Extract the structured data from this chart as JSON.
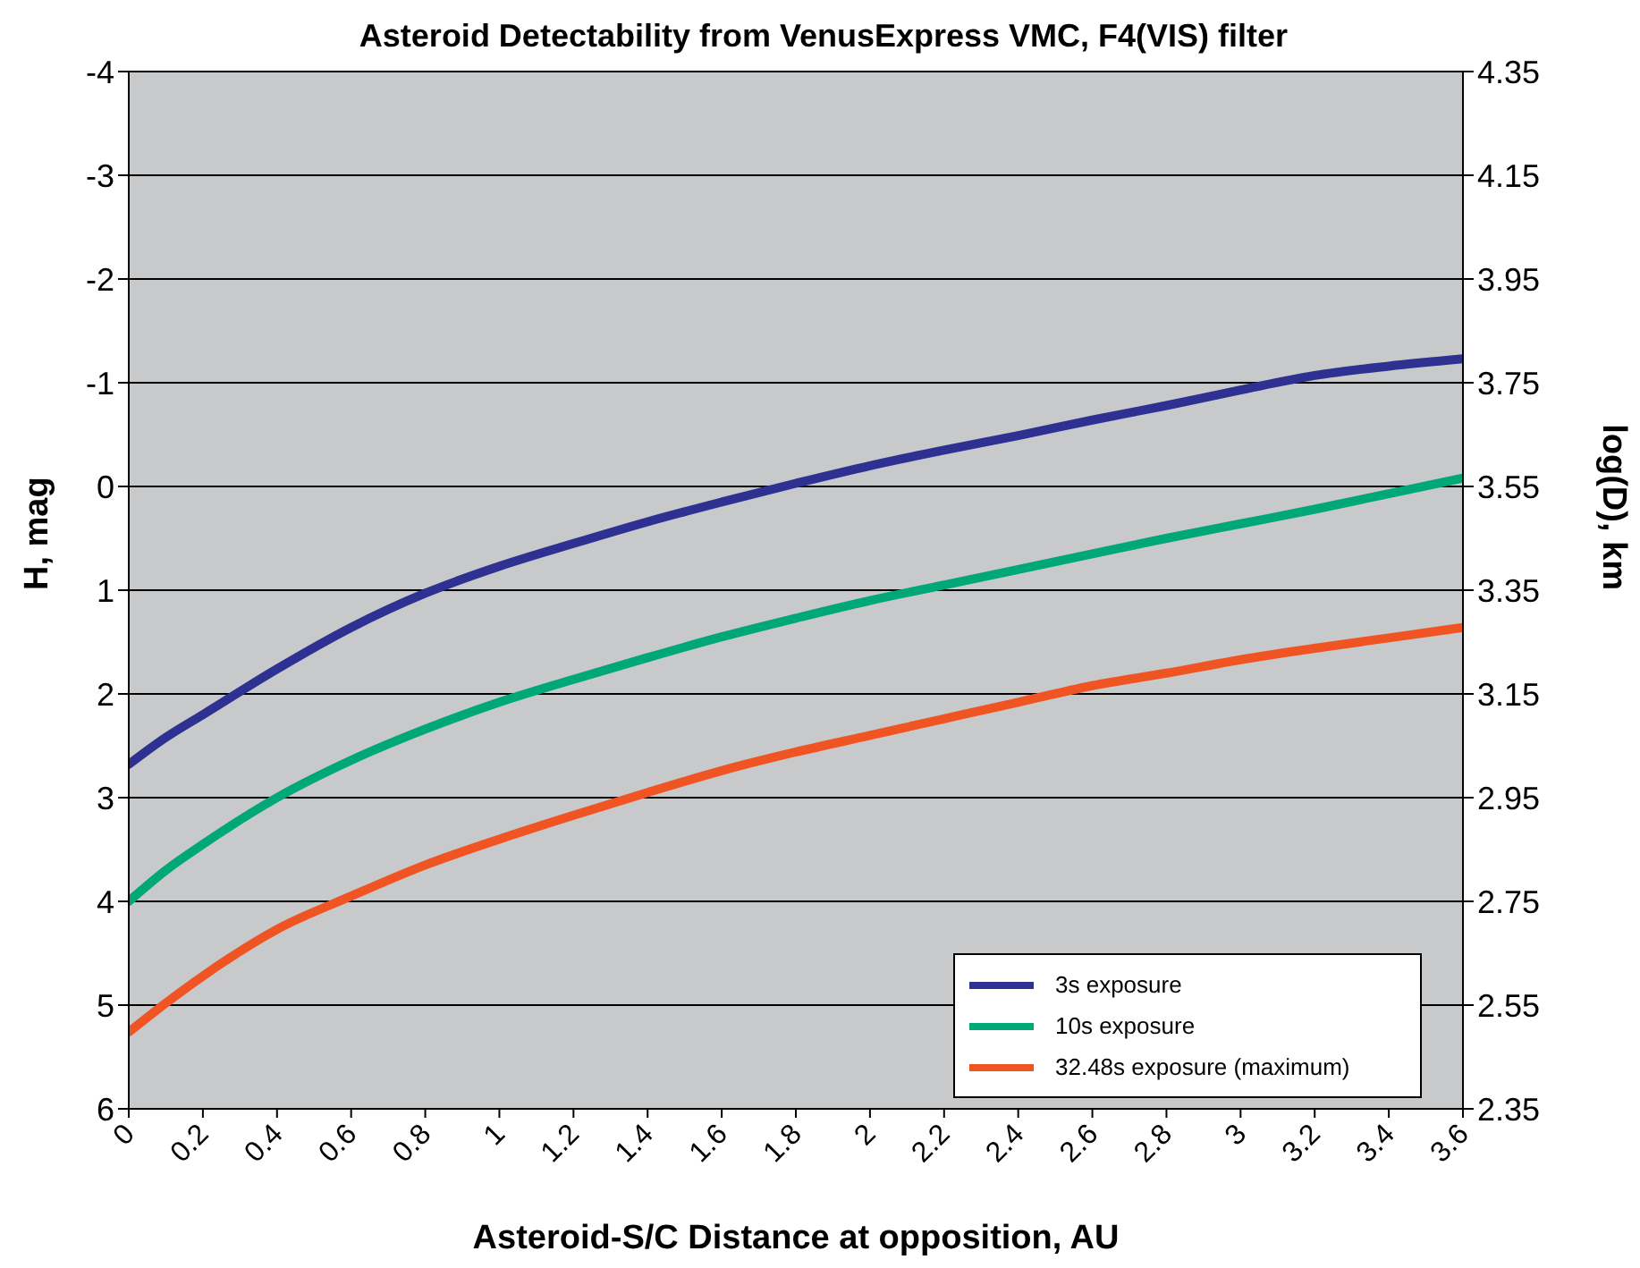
{
  "chart_data": {
    "type": "line",
    "title": "Asteroid Detectability from VenusExpress VMC, F4(VIS) filter",
    "xlabel": "Asteroid-S/C Distance at opposition, AU",
    "ylabel": "H, mag",
    "y2label": "log(D), km",
    "x": [
      0,
      0.1,
      0.2,
      0.4,
      0.6,
      0.8,
      1.0,
      1.2,
      1.4,
      1.6,
      1.8,
      2.0,
      2.2,
      2.4,
      2.6,
      2.8,
      3.0,
      3.2,
      3.4,
      3.6
    ],
    "series": [
      {
        "name": "3s exposure",
        "color": "#2e3192",
        "values": [
          2.68,
          2.42,
          2.2,
          1.76,
          1.36,
          1.03,
          0.77,
          0.55,
          0.34,
          0.15,
          -0.03,
          -0.2,
          -0.35,
          -0.49,
          -0.64,
          -0.78,
          -0.93,
          -1.07,
          -1.16,
          -1.23
        ]
      },
      {
        "name": "10s exposure",
        "color": "#00a878",
        "values": [
          4.0,
          3.7,
          3.45,
          3.0,
          2.64,
          2.34,
          2.08,
          1.86,
          1.65,
          1.45,
          1.27,
          1.1,
          0.95,
          0.8,
          0.65,
          0.5,
          0.36,
          0.22,
          0.07,
          -0.08
        ]
      },
      {
        "name": "32.48s exposure (maximum)",
        "color": "#f05423",
        "values": [
          5.26,
          4.98,
          4.72,
          4.27,
          3.95,
          3.65,
          3.4,
          3.17,
          2.95,
          2.74,
          2.56,
          2.4,
          2.24,
          2.08,
          1.92,
          1.8,
          1.67,
          1.56,
          1.46,
          1.36
        ]
      }
    ],
    "xlim": [
      0,
      3.6
    ],
    "xticks": [
      0,
      0.2,
      0.4,
      0.6,
      0.8,
      1,
      1.2,
      1.4,
      1.6,
      1.8,
      2,
      2.2,
      2.4,
      2.6,
      2.8,
      3,
      3.2,
      3.4,
      3.6
    ],
    "ylim": [
      6,
      -4
    ],
    "yticks": [
      -4,
      -3,
      -2,
      -1,
      0,
      1,
      2,
      3,
      4,
      5,
      6
    ],
    "y2lim": [
      2.35,
      4.35
    ],
    "y2ticks": [
      2.35,
      2.55,
      2.75,
      2.95,
      3.15,
      3.35,
      3.55,
      3.75,
      3.95,
      4.15,
      4.35
    ],
    "grid": "y",
    "legend": "bottom right",
    "marker": "none",
    "line_style": "solid"
  }
}
